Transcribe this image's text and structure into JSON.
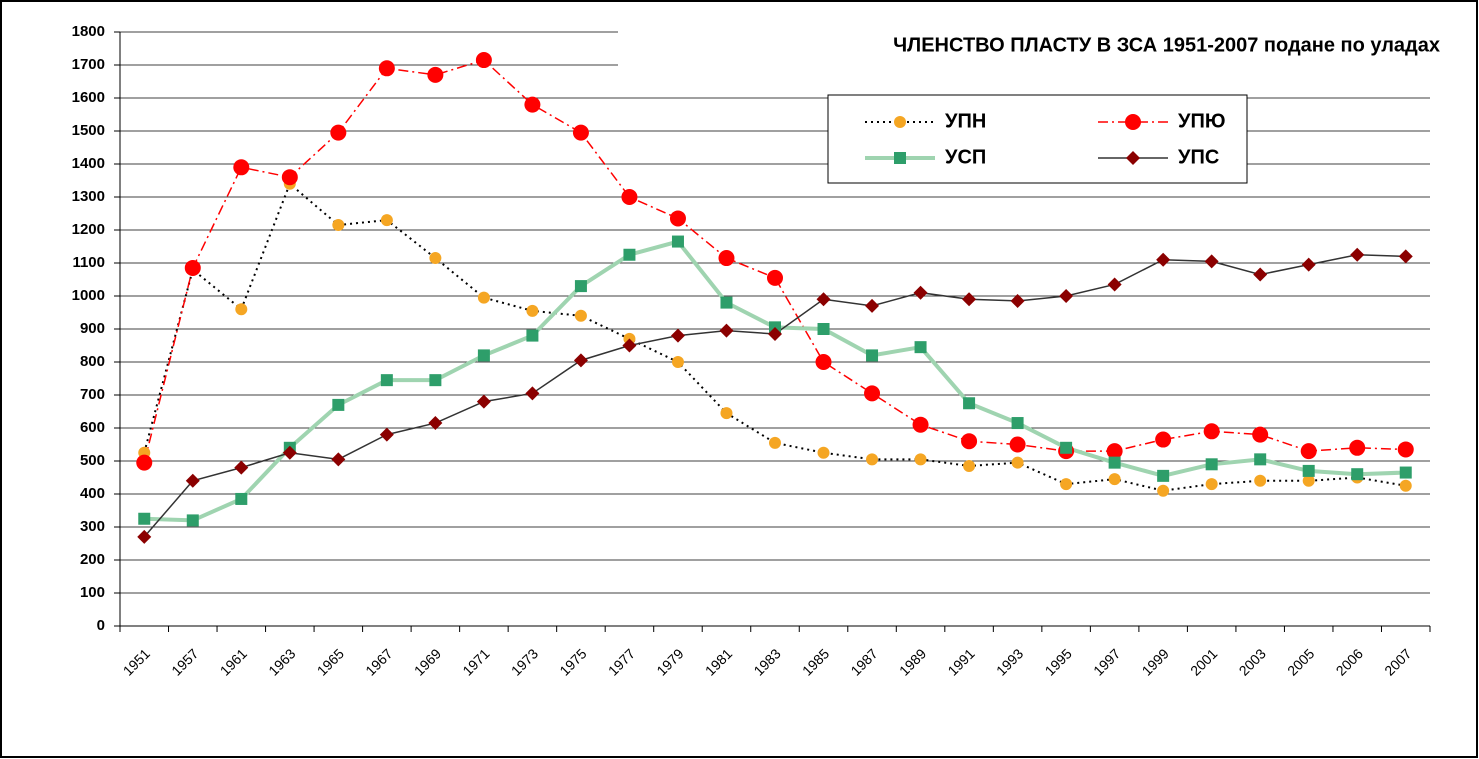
{
  "chart_data": {
    "type": "line",
    "title": "ЧЛЕНСТВО ПЛАСТУ В ЗСА  1951-2007    подане по уладах",
    "categories": [
      "1951",
      "1957",
      "1961",
      "1963",
      "1965",
      "1967",
      "1969",
      "1971",
      "1973",
      "1975",
      "1977",
      "1979",
      "1981",
      "1983",
      "1985",
      "1987",
      "1989",
      "1991",
      "1993",
      "1995",
      "1997",
      "1999",
      "2001",
      "2003",
      "2005",
      "2006",
      "2007"
    ],
    "series": [
      {
        "name": "УПН",
        "color": "#f5a623",
        "line_color": "#000000",
        "values": [
          525,
          1080,
          960,
          1340,
          1215,
          1230,
          1115,
          995,
          955,
          940,
          870,
          800,
          645,
          555,
          525,
          505,
          505,
          485,
          495,
          430,
          445,
          410,
          430,
          440,
          440,
          450,
          425
        ]
      },
      {
        "name": "УПЮ",
        "color": "#ff0000",
        "line_color": "#ff0000",
        "values": [
          495,
          1085,
          1390,
          1360,
          1495,
          1690,
          1670,
          1715,
          1580,
          1495,
          1300,
          1235,
          1115,
          1055,
          800,
          705,
          610,
          560,
          550,
          530,
          530,
          565,
          590,
          580,
          530,
          540,
          535
        ]
      },
      {
        "name": "УСП",
        "color": "#2e9e6a",
        "line_color": "#9fd4b0",
        "values": [
          325,
          320,
          385,
          540,
          670,
          745,
          745,
          820,
          880,
          1030,
          1125,
          1165,
          980,
          905,
          900,
          820,
          845,
          675,
          615,
          540,
          495,
          455,
          490,
          505,
          470,
          460,
          465
        ]
      },
      {
        "name": "УПС",
        "color": "#8b0000",
        "line_color": "#333333",
        "values": [
          270,
          440,
          480,
          525,
          505,
          580,
          615,
          680,
          705,
          805,
          850,
          880,
          895,
          885,
          990,
          970,
          1010,
          990,
          985,
          1000,
          1035,
          1110,
          1105,
          1065,
          1095,
          1125,
          1120
        ]
      }
    ],
    "ylim": [
      0,
      1800
    ],
    "yticks": [
      0,
      100,
      200,
      300,
      400,
      500,
      600,
      700,
      800,
      900,
      1000,
      1100,
      1200,
      1300,
      1400,
      1500,
      1600,
      1700,
      1800
    ],
    "grid": true
  }
}
